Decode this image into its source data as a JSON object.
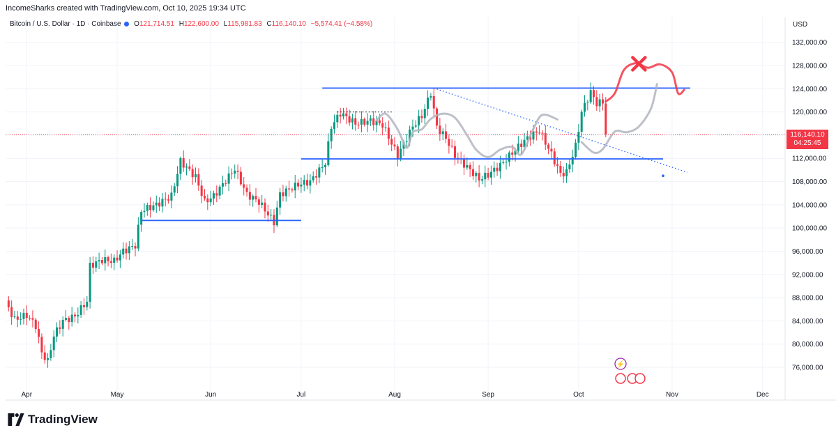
{
  "header": {
    "created_by": "IncomeSharks created with TradingView.com, Oct 10, 2025 19:34 UTC"
  },
  "symbol": {
    "name": "Bitcoin / U.S. Dollar · 1D · Coinbase",
    "open_label": "O",
    "open": "121,714.51",
    "high_label": "H",
    "high": "122,600.00",
    "low_label": "L",
    "low": "115,981.83",
    "close_label": "C",
    "close": "116,140.10",
    "change": "−5,574.41 (−4.58%)"
  },
  "price_tag": {
    "price": "116,140.10",
    "countdown": "04:25:45"
  },
  "branding": {
    "logo_text": "TradingView"
  },
  "colors": {
    "up": "#089981",
    "down": "#f23645",
    "level": "#2962ff",
    "projection_red": "#f23645",
    "projection_grey": "#b2b5be"
  },
  "chart_data": {
    "type": "candlestick",
    "currency_label": "USD",
    "ylim": [
      73000,
      134000
    ],
    "y_ticks": [
      76000,
      80000,
      84000,
      88000,
      92000,
      96000,
      100000,
      104000,
      108000,
      112000,
      116000,
      120000,
      124000,
      128000,
      132000
    ],
    "y_tick_labels": [
      "76,000.00",
      "80,000.00",
      "84,000.00",
      "88,000.00",
      "92,000.00",
      "96,000.00",
      "100,000.00",
      "104,000.00",
      "108,000.00",
      "112,000.00",
      "116,000.00",
      "120,000.00",
      "124,000.00",
      "128,000.00",
      "132,000.00"
    ],
    "x_labels": [
      {
        "label": "Apr",
        "date": "2025-04-01"
      },
      {
        "label": "May",
        "date": "2025-05-01"
      },
      {
        "label": "Jun",
        "date": "2025-06-01"
      },
      {
        "label": "Jul",
        "date": "2025-07-01"
      },
      {
        "label": "Aug",
        "date": "2025-08-01"
      },
      {
        "label": "Sep",
        "date": "2025-09-01"
      },
      {
        "label": "Oct",
        "date": "2025-10-01"
      },
      {
        "label": "Nov",
        "date": "2025-11-01"
      },
      {
        "label": "Dec",
        "date": "2025-12-01"
      }
    ],
    "x_range": [
      "2025-03-25",
      "2025-12-08"
    ],
    "close_keypoints": [
      [
        "2025-03-25",
        87200
      ],
      [
        "2025-03-28",
        84200
      ],
      [
        "2025-04-01",
        85000
      ],
      [
        "2025-04-04",
        83200
      ],
      [
        "2025-04-06",
        78500
      ],
      [
        "2025-04-08",
        77000
      ],
      [
        "2025-04-10",
        81500
      ],
      [
        "2025-04-13",
        84000
      ],
      [
        "2025-04-17",
        84800
      ],
      [
        "2025-04-21",
        87400
      ],
      [
        "2025-04-22",
        93500
      ],
      [
        "2025-04-26",
        94500
      ],
      [
        "2025-04-30",
        94300
      ],
      [
        "2025-05-03",
        96000
      ],
      [
        "2025-05-07",
        97000
      ],
      [
        "2025-05-09",
        103000
      ],
      [
        "2025-05-14",
        104000
      ],
      [
        "2025-05-19",
        105500
      ],
      [
        "2025-05-22",
        111500
      ],
      [
        "2025-05-27",
        108800
      ],
      [
        "2025-05-30",
        104500
      ],
      [
        "2025-06-02",
        105500
      ],
      [
        "2025-06-09",
        110200
      ],
      [
        "2025-06-13",
        105800
      ],
      [
        "2025-06-17",
        104500
      ],
      [
        "2025-06-22",
        101000
      ],
      [
        "2025-06-24",
        105800
      ],
      [
        "2025-06-30",
        107500
      ],
      [
        "2025-07-04",
        108000
      ],
      [
        "2025-07-09",
        111200
      ],
      [
        "2025-07-11",
        117500
      ],
      [
        "2025-07-14",
        119800
      ],
      [
        "2025-07-19",
        118000
      ],
      [
        "2025-07-24",
        118500
      ],
      [
        "2025-07-28",
        117800
      ],
      [
        "2025-08-01",
        113500
      ],
      [
        "2025-08-02",
        112500
      ],
      [
        "2025-08-07",
        117500
      ],
      [
        "2025-08-10",
        119300
      ],
      [
        "2025-08-13",
        123300
      ],
      [
        "2025-08-15",
        117400
      ],
      [
        "2025-08-18",
        115500
      ],
      [
        "2025-08-21",
        112500
      ],
      [
        "2025-08-26",
        110000
      ],
      [
        "2025-08-29",
        108400
      ],
      [
        "2025-09-01",
        109200
      ],
      [
        "2025-09-05",
        110800
      ],
      [
        "2025-09-10",
        113500
      ],
      [
        "2025-09-14",
        115500
      ],
      [
        "2025-09-18",
        116800
      ],
      [
        "2025-09-22",
        112700
      ],
      [
        "2025-09-25",
        109300
      ],
      [
        "2025-09-27",
        109600
      ],
      [
        "2025-09-30",
        114100
      ],
      [
        "2025-10-02",
        120000
      ],
      [
        "2025-10-05",
        123400
      ],
      [
        "2025-10-07",
        121500
      ],
      [
        "2025-10-09",
        121700
      ],
      [
        "2025-10-10",
        116140
      ]
    ],
    "lines": [
      {
        "name": "",
        "style": "solid",
        "color": "#2962ff",
        "points": [
          [
            "2025-05-09",
            101300
          ],
          [
            "2025-07-01",
            101300
          ]
        ]
      },
      {
        "name": "",
        "style": "solid",
        "color": "#2962ff",
        "points": [
          [
            "2025-07-01",
            111900
          ],
          [
            "2025-10-29",
            111900
          ]
        ]
      },
      {
        "name": "",
        "style": "solid",
        "color": "#2962ff",
        "points": [
          [
            "2025-07-08",
            124100
          ],
          [
            "2025-11-07",
            124100
          ]
        ]
      },
      {
        "name": "",
        "style": "dotted",
        "color": "#2962ff",
        "points": [
          [
            "2025-08-14",
            124100
          ],
          [
            "2025-11-06",
            109600
          ]
        ]
      },
      {
        "name": "",
        "style": "dotted",
        "color": "#131722",
        "points": [
          [
            "2025-07-13",
            120000
          ],
          [
            "2025-07-31",
            120000
          ]
        ]
      }
    ],
    "projections": [
      {
        "name": "",
        "color": "#f23645",
        "points": [
          [
            "2025-10-10",
            121800
          ],
          [
            "2025-10-13",
            123200
          ],
          [
            "2025-10-16",
            127200
          ],
          [
            "2025-10-20",
            128400
          ],
          [
            "2025-10-24",
            127600
          ],
          [
            "2025-10-28",
            128200
          ],
          [
            "2025-11-01",
            126800
          ],
          [
            "2025-11-03",
            123200
          ],
          [
            "2025-11-05",
            123800
          ]
        ]
      },
      {
        "name": "",
        "color": "#b2b5be",
        "points": [
          [
            "2025-07-26",
            118500
          ],
          [
            "2025-07-29",
            119700
          ],
          [
            "2025-08-02",
            117000
          ],
          [
            "2025-08-05",
            113800
          ],
          [
            "2025-08-07",
            116500
          ],
          [
            "2025-08-10",
            117000
          ],
          [
            "2025-08-13",
            118800
          ],
          [
            "2025-08-17",
            119700
          ],
          [
            "2025-08-21",
            119000
          ],
          [
            "2025-08-25",
            116000
          ],
          [
            "2025-08-28",
            113500
          ],
          [
            "2025-09-01",
            112200
          ],
          [
            "2025-09-05",
            113500
          ],
          [
            "2025-09-09",
            114000
          ],
          [
            "2025-09-12",
            112700
          ],
          [
            "2025-09-16",
            117100
          ],
          [
            "2025-09-19",
            119500
          ],
          [
            "2025-09-24",
            118700
          ]
        ]
      },
      {
        "name": "",
        "color": "#b2b5be",
        "points": [
          [
            "2025-10-02",
            114800
          ],
          [
            "2025-10-06",
            113000
          ],
          [
            "2025-10-09",
            113600
          ],
          [
            "2025-10-13",
            116600
          ],
          [
            "2025-10-17",
            116500
          ],
          [
            "2025-10-21",
            117500
          ],
          [
            "2025-10-25",
            120600
          ],
          [
            "2025-10-27",
            124800
          ]
        ]
      }
    ],
    "markers": [
      {
        "type": "x",
        "color": "#f23645",
        "date": "2025-10-21",
        "value": 128300
      }
    ]
  }
}
